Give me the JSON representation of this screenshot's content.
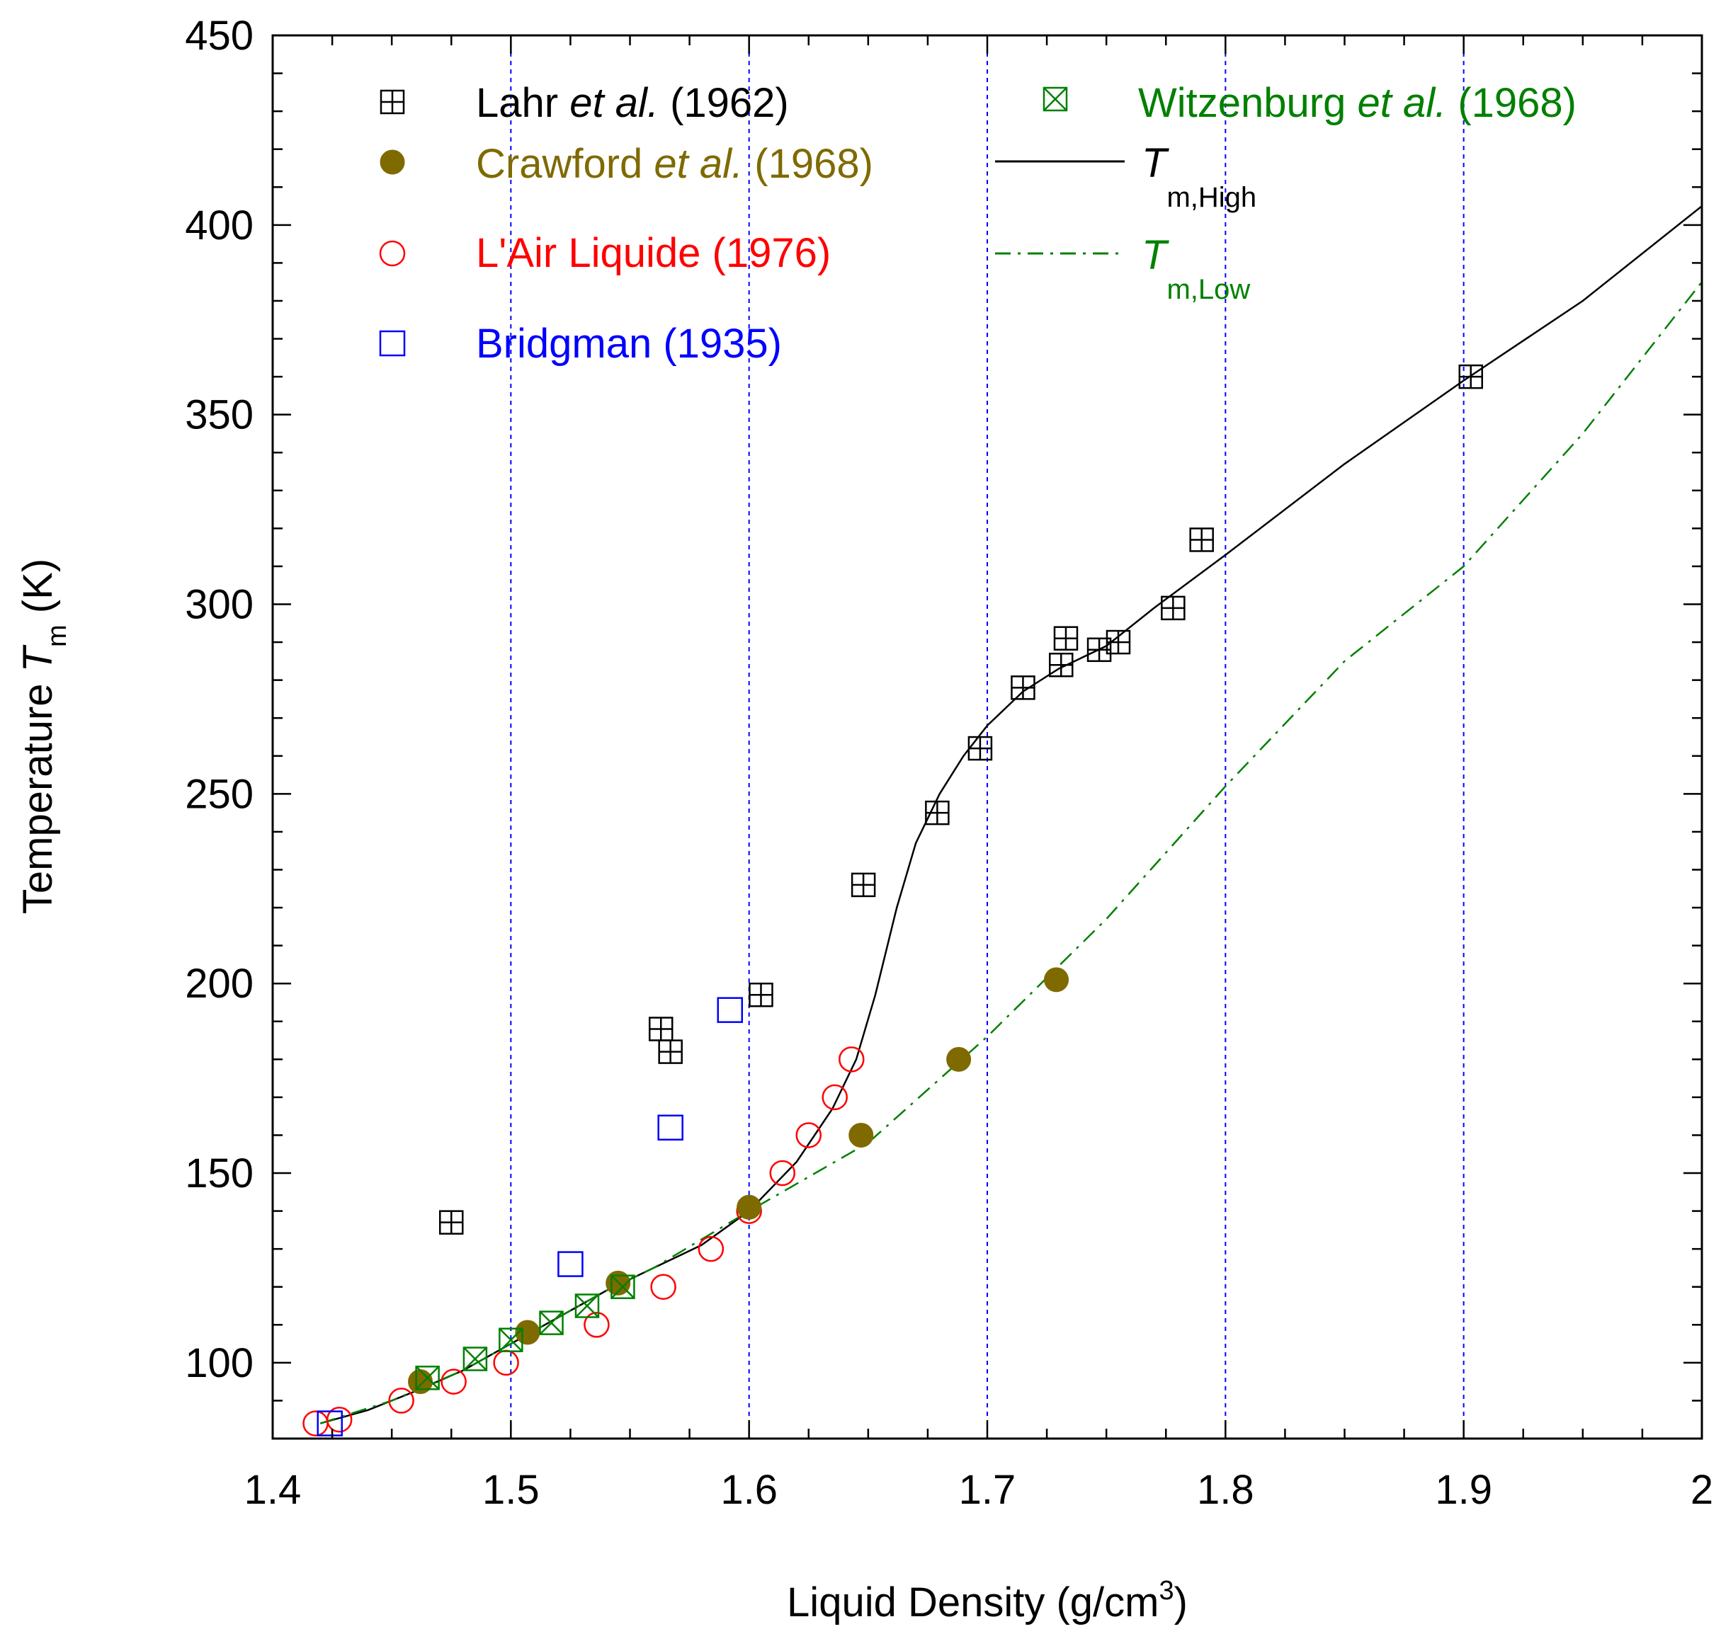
{
  "chart_data": {
    "type": "scatter",
    "xlabel": "Liquid Density (g/cm",
    "xlabel_sup": "3",
    "xlabel_end": ")",
    "ylabel": "Temperature ",
    "ylabel_var": "T",
    "ylabel_sub": "m",
    "ylabel_unit": " (K)",
    "xlim": [
      1.4,
      2.0
    ],
    "ylim": [
      80,
      450
    ],
    "x_ticks": [
      1.4,
      1.5,
      1.6,
      1.7,
      1.8,
      1.9,
      2.0
    ],
    "x_tick_labels": [
      "1.4",
      "1.5",
      "1.6",
      "1.7",
      "1.8",
      "1.9",
      "2"
    ],
    "y_ticks": [
      100,
      150,
      200,
      250,
      300,
      350,
      400,
      450
    ],
    "y_tick_labels": [
      "100",
      "150",
      "200",
      "250",
      "300",
      "350",
      "400",
      "450"
    ],
    "grid_x": [
      1.5,
      1.6,
      1.7,
      1.8,
      1.9
    ],
    "grid_color": "#0000ff",
    "series": [
      {
        "name": "Lahr et al. (1962)",
        "label_main": "Lahr ",
        "label_italic": "et al.",
        "label_end": " (1962)",
        "marker": "square-plus",
        "color": "#000000",
        "points": [
          [
            1.475,
            137
          ],
          [
            1.563,
            188
          ],
          [
            1.567,
            182
          ],
          [
            1.605,
            197
          ],
          [
            1.648,
            226
          ],
          [
            1.679,
            245
          ],
          [
            1.697,
            262
          ],
          [
            1.715,
            278
          ],
          [
            1.731,
            284
          ],
          [
            1.733,
            291
          ],
          [
            1.747,
            288
          ],
          [
            1.755,
            290
          ],
          [
            1.778,
            299
          ],
          [
            1.79,
            317
          ],
          [
            1.903,
            360
          ]
        ]
      },
      {
        "name": "Crawford et al. (1968)",
        "label_main": "Crawford ",
        "label_italic": "et al.",
        "label_end": " (1968)",
        "marker": "filled-circle",
        "color": "#7f6a00",
        "points": [
          [
            1.462,
            95
          ],
          [
            1.507,
            108
          ],
          [
            1.545,
            121
          ],
          [
            1.6,
            141
          ],
          [
            1.647,
            160
          ],
          [
            1.688,
            180
          ],
          [
            1.729,
            201
          ]
        ]
      },
      {
        "name": "L'Air Liquide (1976)",
        "label_main": "L'Air Liquide (1976)",
        "marker": "open-circle",
        "color": "#ff0000",
        "points": [
          [
            1.418,
            84
          ],
          [
            1.428,
            85
          ],
          [
            1.454,
            90
          ],
          [
            1.476,
            95
          ],
          [
            1.498,
            100
          ],
          [
            1.536,
            110
          ],
          [
            1.564,
            120
          ],
          [
            1.584,
            130
          ],
          [
            1.6,
            140
          ],
          [
            1.614,
            150
          ],
          [
            1.625,
            160
          ],
          [
            1.636,
            170
          ],
          [
            1.643,
            180
          ]
        ]
      },
      {
        "name": "Bridgman (1935)",
        "label_main": "Bridgman (1935)",
        "marker": "open-square",
        "color": "#0000ff",
        "points": [
          [
            1.424,
            84
          ],
          [
            1.525,
            126
          ],
          [
            1.567,
            162
          ],
          [
            1.592,
            193
          ]
        ]
      },
      {
        "name": "Witzenburg et al. (1968)",
        "label_main": "Witzenburg ",
        "label_italic": "et al.",
        "label_end": " (1968)",
        "marker": "square-x",
        "color": "#008000",
        "points": [
          [
            1.465,
            96
          ],
          [
            1.485,
            101
          ],
          [
            1.5,
            106
          ],
          [
            1.517,
            110.5
          ],
          [
            1.532,
            115
          ],
          [
            1.547,
            120
          ]
        ]
      }
    ],
    "lines": [
      {
        "name": "T m,High",
        "label_var": "T",
        "label_sub": "m,High",
        "style": "solid",
        "color": "#000000",
        "points": [
          [
            1.42,
            84
          ],
          [
            1.44,
            87.5
          ],
          [
            1.46,
            92.5
          ],
          [
            1.48,
            98
          ],
          [
            1.5,
            105
          ],
          [
            1.52,
            112
          ],
          [
            1.54,
            119
          ],
          [
            1.56,
            125
          ],
          [
            1.58,
            131
          ],
          [
            1.6,
            140
          ],
          [
            1.62,
            153
          ],
          [
            1.635,
            167
          ],
          [
            1.645,
            180
          ],
          [
            1.653,
            197
          ],
          [
            1.662,
            220
          ],
          [
            1.67,
            237
          ],
          [
            1.68,
            250
          ],
          [
            1.69,
            260
          ],
          [
            1.7,
            268
          ],
          [
            1.715,
            277
          ],
          [
            1.73,
            283
          ],
          [
            1.75,
            289
          ],
          [
            1.77,
            299
          ],
          [
            1.8,
            313
          ],
          [
            1.85,
            337
          ],
          [
            1.9,
            359
          ],
          [
            1.95,
            380
          ],
          [
            2.0,
            405
          ]
        ]
      },
      {
        "name": "T m,Low",
        "label_var": "T",
        "label_sub": "m,Low",
        "style": "dash-dot",
        "color": "#008000",
        "points": [
          [
            1.42,
            84
          ],
          [
            1.45,
            90
          ],
          [
            1.48,
            98
          ],
          [
            1.5,
            105
          ],
          [
            1.52,
            112
          ],
          [
            1.54,
            119
          ],
          [
            1.56,
            125
          ],
          [
            1.6,
            140
          ],
          [
            1.65,
            158
          ],
          [
            1.7,
            186
          ],
          [
            1.75,
            217
          ],
          [
            1.8,
            252
          ],
          [
            1.85,
            285
          ],
          [
            1.9,
            310
          ],
          [
            1.95,
            345
          ],
          [
            2.0,
            385
          ]
        ]
      }
    ]
  }
}
